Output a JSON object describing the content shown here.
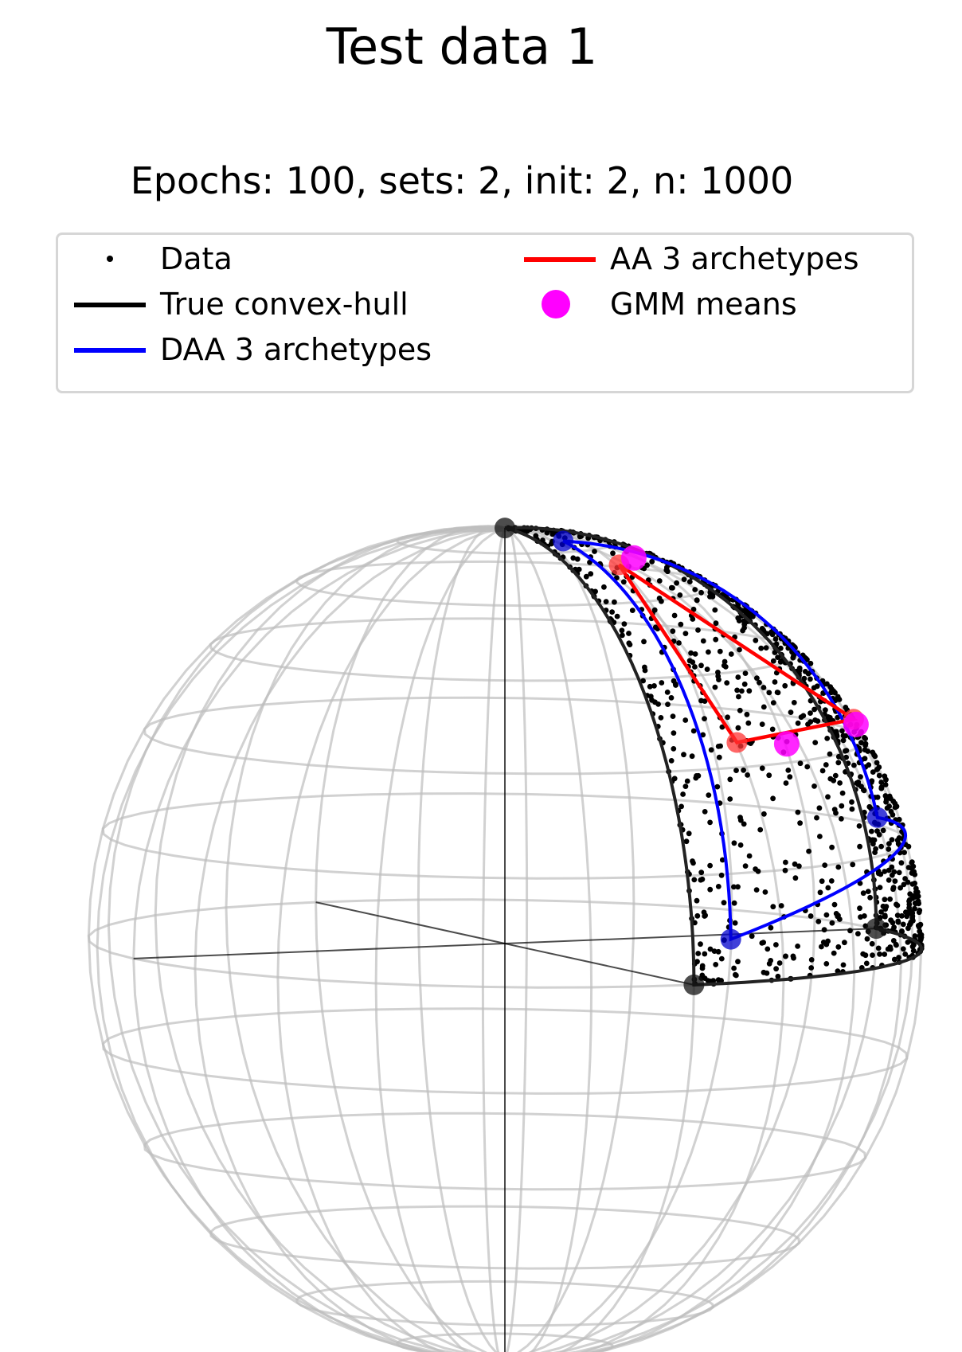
{
  "chart_data": {
    "type": "scatter",
    "title": "Test data 1",
    "subtitle": "Epochs: 100, sets: 2, init: 2, n: 1000",
    "legend": {
      "placement": "top",
      "entries": [
        {
          "label": "Data",
          "color": "#000000",
          "marker": "dot"
        },
        {
          "label": "True convex-hull",
          "color": "#000000",
          "marker": "line"
        },
        {
          "label": "DAA 3 archetypes",
          "color": "#0000ff",
          "marker": "line"
        },
        {
          "label": "AA 3 archetypes",
          "color": "#ff0000",
          "marker": "line"
        },
        {
          "label": "GMM means",
          "color": "#ff00ff",
          "marker": "circle"
        }
      ]
    },
    "projection": "3d-unit-sphere",
    "grid": true,
    "n_points": 1000,
    "true_convex_hull_vertices": [
      [
        0,
        0,
        1
      ],
      [
        1,
        0,
        0
      ],
      [
        0,
        1,
        0
      ]
    ],
    "daa_archetypes": [
      [
        0.17,
        0.07,
        0.98
      ],
      [
        0.66,
        0.07,
        0.07
      ],
      [
        0.09,
        0.93,
        0.27
      ]
    ],
    "aa_archetypes": [
      [
        0.28,
        0.13,
        0.83
      ],
      [
        0.52,
        0.14,
        0.36
      ],
      [
        0.3,
        0.71,
        0.5
      ]
    ],
    "gmm_means": [
      [
        0.24,
        0.22,
        0.93
      ],
      [
        0.5,
        0.25,
        0.36
      ],
      [
        0.27,
        0.78,
        0.51
      ]
    ]
  }
}
